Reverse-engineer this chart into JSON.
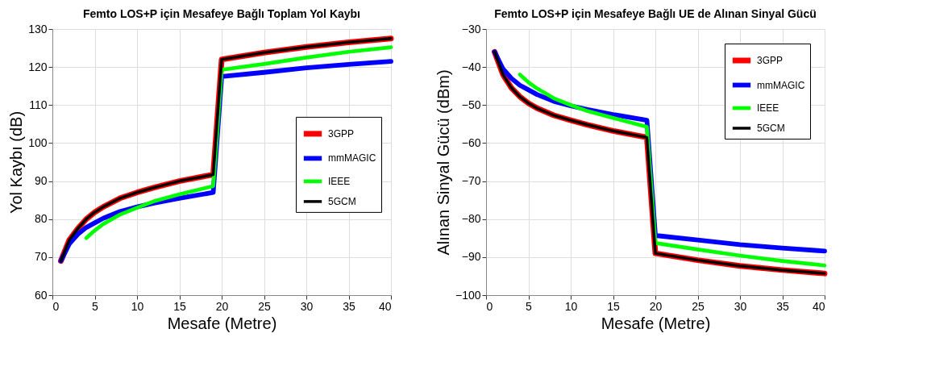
{
  "chart_data": [
    {
      "type": "line",
      "title": "Femto LOS+P için Mesafeye Bağlı Toplam Yol Kaybı",
      "xlabel": "Mesafe (Metre)",
      "ylabel": "Yol Kaybı (dB)",
      "xlim": [
        0,
        40
      ],
      "xticks": [
        0,
        5,
        10,
        15,
        20,
        25,
        30,
        35,
        40
      ],
      "ylim": [
        60,
        130
      ],
      "yticks": [
        60,
        70,
        80,
        90,
        100,
        110,
        120,
        130
      ],
      "grid": true,
      "legend": "right",
      "marker": "none",
      "line_style": "solid",
      "series": [
        {
          "name": "3GPP",
          "color": "#ff0000",
          "x": [
            1,
            2,
            3,
            4,
            5,
            6,
            8,
            10,
            12,
            15,
            19,
            20,
            25,
            30,
            35,
            40
          ],
          "values": [
            69,
            74.5,
            77.5,
            80,
            81.8,
            83.2,
            85.5,
            87,
            88.3,
            90,
            91.7,
            122,
            123.8,
            125.3,
            126.5,
            127.5
          ]
        },
        {
          "name": "mmMAGIC",
          "color": "#0000ff",
          "x": [
            1,
            2,
            3,
            4,
            5,
            6,
            8,
            10,
            12,
            15,
            19,
            20,
            25,
            30,
            35,
            40
          ],
          "values": [
            69,
            73.5,
            76,
            77.8,
            79,
            80.2,
            82,
            83.2,
            84.2,
            85.5,
            87,
            117.5,
            118.6,
            119.8,
            120.7,
            121.5
          ]
        },
        {
          "name": "IEEE",
          "color": "#00ff00",
          "x": [
            4,
            5,
            6,
            8,
            10,
            12,
            15,
            19,
            20,
            25,
            30,
            35,
            40
          ],
          "values": [
            75,
            77,
            78.7,
            81.2,
            83,
            84.7,
            86.5,
            88.7,
            119.3,
            120.8,
            122.5,
            124,
            125.2
          ]
        },
        {
          "name": "5GCM",
          "color": "#000000",
          "x": [
            1,
            2,
            3,
            4,
            5,
            6,
            8,
            10,
            12,
            15,
            19,
            20,
            25,
            30,
            35,
            40
          ],
          "values": [
            69,
            74.5,
            77.5,
            80,
            81.8,
            83.2,
            85.5,
            87,
            88.3,
            90,
            91.7,
            122,
            123.8,
            125.3,
            126.5,
            127.5
          ]
        }
      ]
    },
    {
      "type": "line",
      "title": "Femto LOS+P için Mesafeye Bağlı UE de Alınan Sinyal Gücü",
      "xlabel": "Mesafe (Metre)",
      "ylabel": "Alınan Sinyal Gücü (dBm)",
      "xlim": [
        0,
        40
      ],
      "xticks": [
        0,
        5,
        10,
        15,
        20,
        25,
        30,
        35,
        40
      ],
      "ylim": [
        -100,
        -30
      ],
      "yticks": [
        -100,
        -90,
        -80,
        -70,
        -60,
        -50,
        -40,
        -30
      ],
      "grid": true,
      "legend": "top right",
      "marker": "none",
      "line_style": "solid",
      "series": [
        {
          "name": "3GPP",
          "color": "#ff0000",
          "x": [
            1,
            2,
            3,
            4,
            5,
            6,
            8,
            10,
            12,
            15,
            19,
            20,
            25,
            30,
            35,
            40
          ],
          "values": [
            -36,
            -42,
            -45.5,
            -47.8,
            -49.5,
            -50.8,
            -52.7,
            -54,
            -55.2,
            -56.8,
            -58.5,
            -89,
            -90.8,
            -92.3,
            -93.4,
            -94.3
          ]
        },
        {
          "name": "mmMAGIC",
          "color": "#0000ff",
          "x": [
            1,
            2,
            3,
            4,
            5,
            6,
            8,
            10,
            12,
            15,
            19,
            20,
            25,
            30,
            35,
            40
          ],
          "values": [
            -36,
            -40.5,
            -43,
            -44.8,
            -46,
            -47.2,
            -49,
            -50.2,
            -51.2,
            -52.5,
            -54,
            -84.3,
            -85.5,
            -86.7,
            -87.6,
            -88.4
          ]
        },
        {
          "name": "IEEE",
          "color": "#00ff00",
          "x": [
            4,
            5,
            6,
            8,
            10,
            12,
            15,
            19,
            20,
            25,
            30,
            35,
            40
          ],
          "values": [
            -42,
            -44,
            -45.6,
            -48.2,
            -50,
            -51.6,
            -53.4,
            -55.7,
            -86.3,
            -88,
            -89.6,
            -91,
            -92.2
          ]
        },
        {
          "name": "5GCM",
          "color": "#000000",
          "x": [
            1,
            2,
            3,
            4,
            5,
            6,
            8,
            10,
            12,
            15,
            19,
            20,
            25,
            30,
            35,
            40
          ],
          "values": [
            -36,
            -42,
            -45.5,
            -47.8,
            -49.5,
            -50.8,
            -52.7,
            -54,
            -55.2,
            -56.8,
            -58.5,
            -89,
            -90.8,
            -92.3,
            -93.4,
            -94.3
          ]
        }
      ]
    }
  ]
}
